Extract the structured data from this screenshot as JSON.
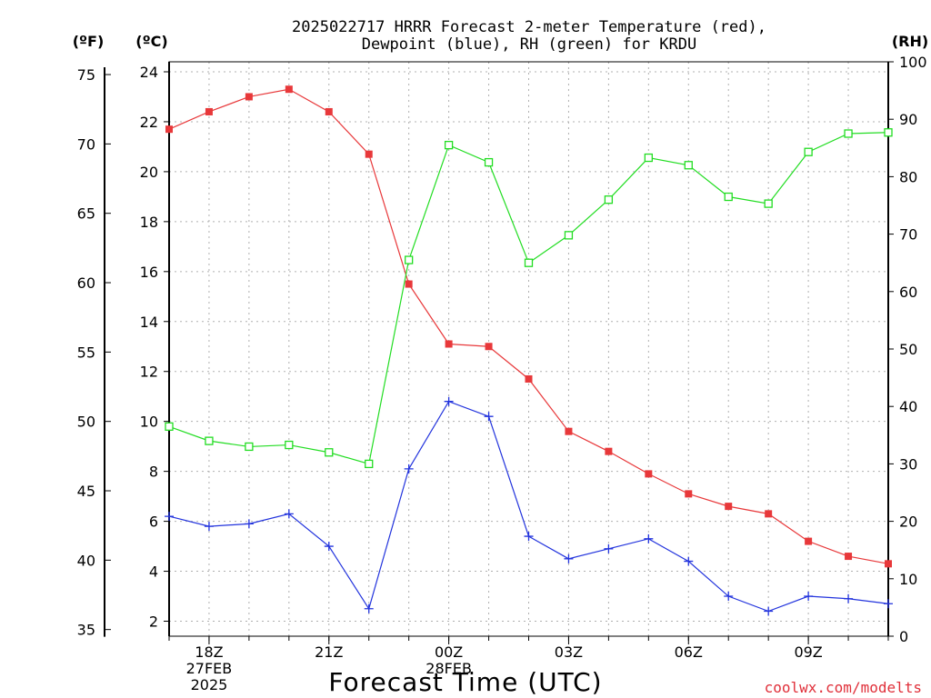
{
  "chart_data": {
    "type": "line",
    "title": [
      "2025022717 HRRR Forecast 2-meter Temperature (red),",
      "Dewpoint (blue), RH (green) for KRDU"
    ],
    "xlabel": "Forecast Time (UTC)",
    "watermark": "coolwx.com/modelts",
    "axes": {
      "fahrenheit": {
        "label": "(ºF)",
        "range": [
          35,
          75
        ],
        "ticks": [
          35,
          40,
          45,
          50,
          55,
          60,
          65,
          70,
          75
        ]
      },
      "celsius": {
        "label": "(ºC)",
        "range": [
          1.4,
          24.4
        ],
        "ticks": [
          2,
          4,
          6,
          8,
          10,
          12,
          14,
          16,
          18,
          20,
          22,
          24
        ]
      },
      "rh": {
        "label": "(RH)",
        "range": [
          0,
          100
        ],
        "ticks": [
          0,
          10,
          20,
          30,
          40,
          50,
          60,
          70,
          80,
          90,
          100
        ]
      }
    },
    "x_hours": [
      17,
      18,
      19,
      20,
      21,
      22,
      23,
      24,
      25,
      26,
      27,
      28,
      29,
      30,
      31,
      32,
      33,
      34,
      35
    ],
    "x_ticks": [
      {
        "hour": 18,
        "lines": [
          "18Z",
          "27FEB",
          "2025"
        ]
      },
      {
        "hour": 21,
        "lines": [
          "21Z"
        ]
      },
      {
        "hour": 24,
        "lines": [
          "00Z",
          "28FEB"
        ]
      },
      {
        "hour": 27,
        "lines": [
          "03Z"
        ]
      },
      {
        "hour": 30,
        "lines": [
          "06Z"
        ]
      },
      {
        "hour": 33,
        "lines": [
          "09Z"
        ]
      }
    ],
    "grid": true,
    "series": [
      {
        "name": "Temperature",
        "axis": "celsius",
        "color": "#e8383a",
        "marker": "filled-square",
        "values": [
          21.7,
          22.4,
          23.0,
          23.3,
          22.4,
          20.7,
          15.5,
          13.1,
          13.0,
          11.7,
          9.6,
          8.8,
          7.9,
          7.1,
          6.6,
          6.3,
          5.2,
          4.6,
          4.3
        ]
      },
      {
        "name": "Dewpoint",
        "axis": "celsius",
        "color": "#2233dd",
        "marker": "plus",
        "values": [
          6.2,
          5.8,
          5.9,
          6.3,
          5.0,
          2.5,
          8.1,
          10.8,
          10.2,
          5.4,
          4.5,
          4.9,
          5.3,
          4.4,
          3.0,
          2.4,
          3.0,
          2.9,
          2.7
        ]
      },
      {
        "name": "RH",
        "axis": "rh",
        "color": "#22dd22",
        "marker": "open-square",
        "values": [
          36.5,
          34,
          33,
          33.3,
          32,
          30,
          65.5,
          85.5,
          82.5,
          65,
          69.8,
          76,
          83.3,
          82,
          76.5,
          75.3,
          84.3,
          87.5,
          87.7
        ]
      }
    ]
  }
}
